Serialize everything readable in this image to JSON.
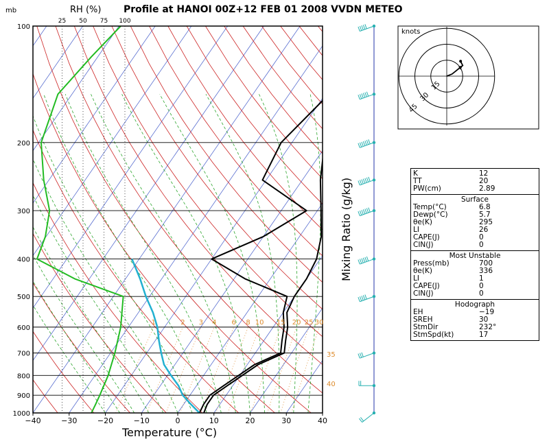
{
  "chart_data": {
    "type": "line",
    "title": "Profile at HANOI 00Z+12 FEB 01 2008 VVDN METEO",
    "xlabel": "Temperature (°C)",
    "ylabel_left": "mb",
    "rh_label": "RH (%)",
    "mixing_label": "Mixing Ratio (g/kg)",
    "xlim": [
      -40,
      40
    ],
    "ylim": [
      1000,
      100
    ],
    "x_ticks": [
      -40,
      -30,
      -20,
      -10,
      0,
      10,
      20,
      30,
      40
    ],
    "x_tick_labels": [
      "−40",
      "−30",
      "−20",
      "−10",
      "0",
      "10",
      "20",
      "30",
      "40"
    ],
    "p_ticks": [
      100,
      200,
      300,
      400,
      500,
      600,
      700,
      800,
      900,
      1000
    ],
    "rh_ticks": [
      "25",
      "50",
      "75",
      "100"
    ],
    "mixing_ratio_labels": [
      "1",
      "2",
      "3",
      "4",
      "6",
      "8",
      "10",
      "15",
      "20",
      "25",
      "30"
    ],
    "theta_e_labels": [
      "35",
      "40"
    ],
    "series": [
      {
        "name": "Temperature",
        "points": [
          [
            7.2,
            1000
          ],
          [
            6.5,
            950
          ],
          [
            6.5,
            900
          ],
          [
            8.5,
            850
          ],
          [
            13,
            750
          ],
          [
            18,
            700
          ],
          [
            16,
            650
          ],
          [
            14,
            600
          ],
          [
            11,
            550
          ],
          [
            10,
            500
          ],
          [
            10,
            450
          ],
          [
            9,
            400
          ],
          [
            6,
            350
          ],
          [
            1,
            300
          ],
          [
            -5,
            250
          ],
          [
            -11,
            200
          ],
          [
            -18,
            150
          ],
          [
            -25,
            120
          ],
          [
            -30,
            100
          ]
        ]
      },
      {
        "name": "Dewpoint",
        "points": [
          [
            6.0,
            1000
          ],
          [
            5.5,
            950
          ],
          [
            5.5,
            900
          ],
          [
            7.5,
            850
          ],
          [
            12,
            750
          ],
          [
            17,
            700
          ],
          [
            15,
            650
          ],
          [
            13,
            600
          ],
          [
            10,
            550
          ],
          [
            8,
            500
          ],
          [
            -7,
            450
          ],
          [
            -20,
            400
          ],
          [
            -10,
            350
          ],
          [
            -3,
            300
          ],
          [
            -21,
            250
          ],
          [
            -23,
            200
          ],
          [
            -19,
            150
          ],
          [
            -17,
            120
          ],
          [
            -14,
            100
          ]
        ]
      },
      {
        "name": "Parcel",
        "points": [
          [
            6.0,
            1000
          ],
          [
            2,
            950
          ],
          [
            -2,
            900
          ],
          [
            -5,
            850
          ],
          [
            -9,
            800
          ],
          [
            -13,
            750
          ],
          [
            -16,
            700
          ],
          [
            -19,
            650
          ],
          [
            -22,
            600
          ],
          [
            -26,
            550
          ],
          [
            -31,
            500
          ],
          [
            -36,
            450
          ],
          [
            -42,
            400
          ]
        ]
      },
      {
        "name": "RH",
        "points": [
          [
            60,
            1000
          ],
          [
            65,
            950
          ],
          [
            70,
            900
          ],
          [
            80,
            800
          ],
          [
            88,
            700
          ],
          [
            95,
            600
          ],
          [
            98,
            500
          ],
          [
            40,
            450
          ],
          [
            -5,
            400
          ],
          [
            5,
            350
          ],
          [
            10,
            300
          ],
          [
            3,
            250
          ],
          [
            0,
            200
          ],
          [
            20,
            150
          ],
          [
            60,
            120
          ],
          [
            95,
            100
          ]
        ]
      }
    ]
  },
  "wind_profile": {
    "levels": [
      {
        "p": 1000,
        "dir": 232,
        "spd": 17
      },
      {
        "p": 850,
        "dir": 270,
        "spd": 20
      },
      {
        "p": 700,
        "dir": 250,
        "spd": 30
      },
      {
        "p": 500,
        "dir": 250,
        "spd": 45
      },
      {
        "p": 400,
        "dir": 250,
        "spd": 55
      },
      {
        "p": 300,
        "dir": 250,
        "spd": 65
      },
      {
        "p": 250,
        "dir": 250,
        "spd": 70
      },
      {
        "p": 200,
        "dir": 250,
        "spd": 70
      },
      {
        "p": 150,
        "dir": 250,
        "spd": 60
      },
      {
        "p": 100,
        "dir": 250,
        "spd": 45
      }
    ]
  },
  "hodograph": {
    "label": "knots",
    "ring_labels": [
      "15",
      "30",
      "45"
    ],
    "points": [
      [
        0,
        0
      ],
      [
        5,
        2
      ],
      [
        10,
        6
      ],
      [
        15,
        10
      ],
      [
        13,
        14
      ]
    ]
  },
  "stats": {
    "top": [
      {
        "k": "K",
        "v": "12"
      },
      {
        "k": "TT",
        "v": "20"
      },
      {
        "k": "PW(cm)",
        "v": "2.89"
      }
    ],
    "surface": {
      "header": "Surface",
      "rows": [
        {
          "k": "Temp(°C)",
          "v": "6.8"
        },
        {
          "k": "Dewp(°C)",
          "v": "5.7"
        },
        {
          "k": "θe(K)",
          "v": "295"
        },
        {
          "k": "LI",
          "v": "26"
        },
        {
          "k": "CAPE(J)",
          "v": "0"
        },
        {
          "k": "CIN(J)",
          "v": "0"
        }
      ]
    },
    "unstable": {
      "header": "Most Unstable",
      "rows": [
        {
          "k": "Press(mb)",
          "v": "700"
        },
        {
          "k": "θe(K)",
          "v": "336"
        },
        {
          "k": "LI",
          "v": "1"
        },
        {
          "k": "CAPE(J)",
          "v": "0"
        },
        {
          "k": "CIN(J)",
          "v": "0"
        }
      ]
    },
    "hodo": {
      "header": "Hodograph",
      "rows": [
        {
          "k": "EH",
          "v": "−19"
        },
        {
          "k": "SREH",
          "v": "30"
        },
        {
          "k": "StmDir",
          "v": "232°"
        },
        {
          "k": "StmSpd(kt)",
          "v": "17"
        }
      ]
    }
  },
  "colors": {
    "isotherm": "#5a6fd0",
    "dry_adiabat": "#cc2222",
    "moist_adiabat": "#2da52d",
    "mixing": "#dd8a2a",
    "temp": "#000000",
    "dewpoint": "#000000",
    "parcel": "#22b0d0",
    "rh": "#22bb22",
    "wind_line": "#2233aa",
    "barb": "#26b0b0"
  }
}
